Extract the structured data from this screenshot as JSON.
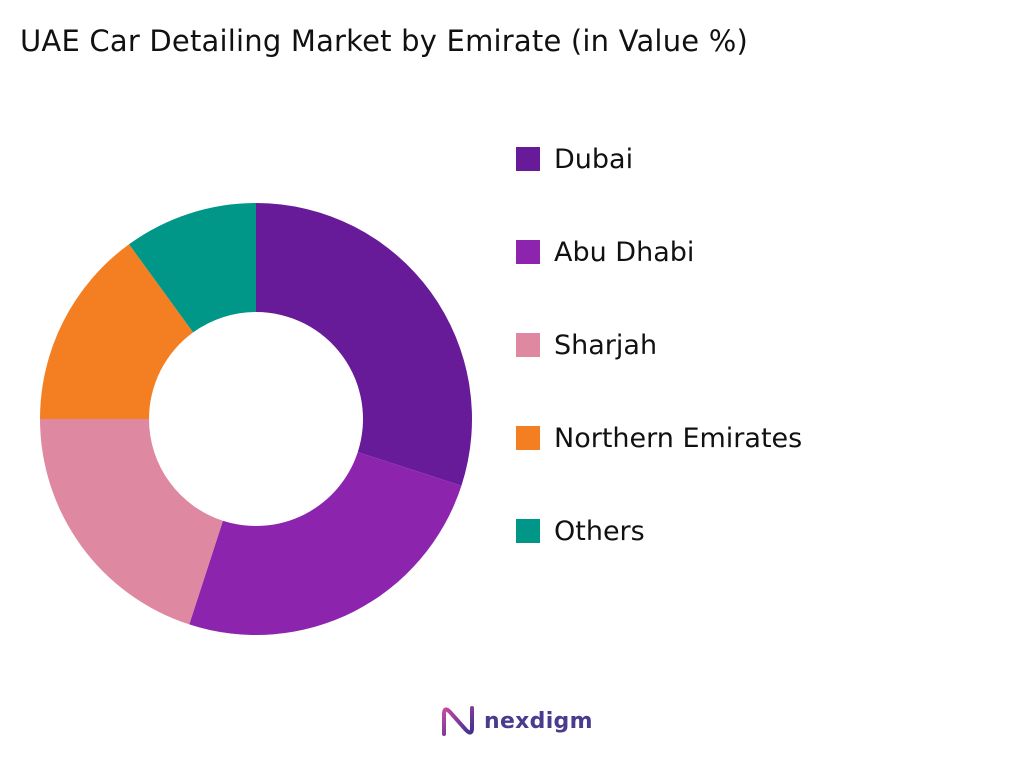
{
  "chart_data": {
    "type": "pie",
    "variant": "donut",
    "title": "UAE Car Detailing Market by Emirate (in Value %)",
    "categories": [
      "Dubai",
      "Abu Dhabi",
      "Sharjah",
      "Northern Emirates",
      "Others"
    ],
    "values": [
      30,
      25,
      20,
      15,
      10
    ],
    "colors": [
      "#671b99",
      "#8c24ae",
      "#de89a1",
      "#f47f22",
      "#009688"
    ],
    "legend_position": "right"
  },
  "brand": {
    "name": "nexdigm",
    "logo_icon": "nexdigm-logo-icon"
  }
}
